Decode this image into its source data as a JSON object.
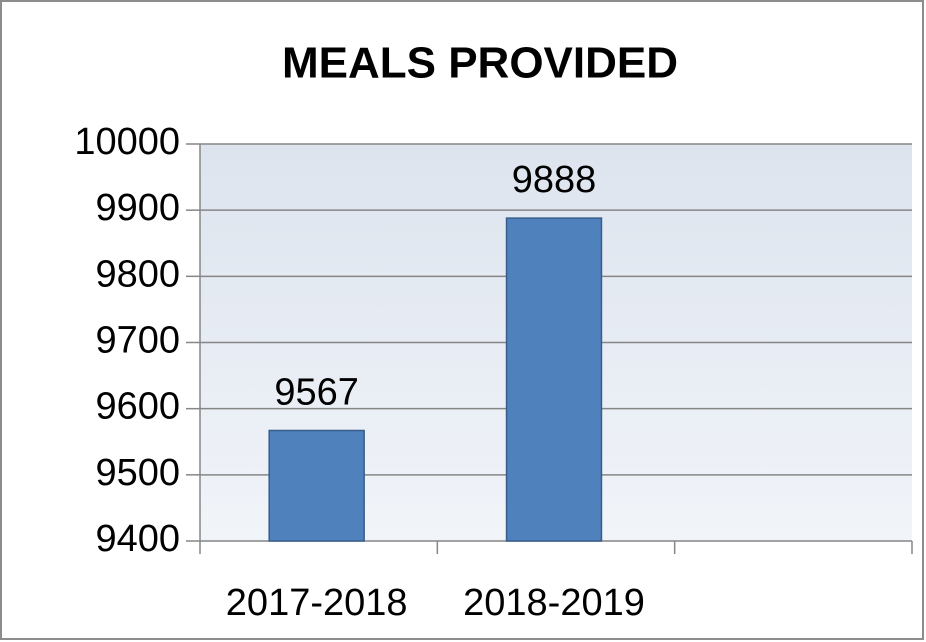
{
  "chart_data": {
    "type": "bar",
    "title": "MEALS PROVIDED",
    "categories": [
      "2017-2018",
      "2018-2019",
      null
    ],
    "values": [
      9567,
      9888,
      null
    ],
    "color": "#4f81bd",
    "ylim": [
      9400,
      10000
    ],
    "yticks": [
      9400,
      9500,
      9600,
      9700,
      9800,
      9900,
      10000
    ],
    "grid": true
  }
}
